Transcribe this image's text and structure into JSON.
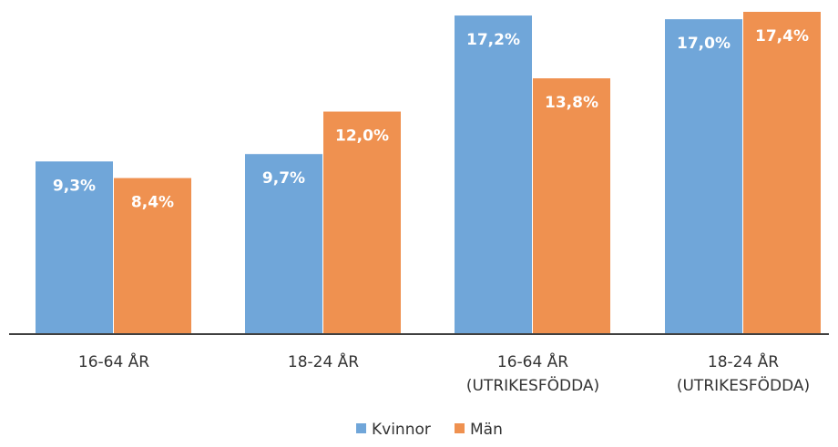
{
  "chart_data": {
    "type": "bar",
    "categories": [
      [
        "16-64 ÅR"
      ],
      [
        "18-24 ÅR"
      ],
      [
        "16-64 ÅR",
        "(UTRIKESFÖDDA)"
      ],
      [
        "18-24 ÅR",
        "(UTRIKESFÖDDA)"
      ]
    ],
    "series": [
      {
        "name": "Kvinnor",
        "color": "#70a6d9",
        "values": [
          9.3,
          9.7,
          17.2,
          17.0
        ],
        "labels": [
          "9,3%",
          "9,7%",
          "17,2%",
          "17,0%"
        ]
      },
      {
        "name": "Män",
        "color": "#ef9150",
        "values": [
          8.4,
          12.0,
          13.8,
          17.4
        ],
        "labels": [
          "8,4%",
          "12,0%",
          "13,8%",
          "17,4%"
        ]
      }
    ],
    "title": "",
    "xlabel": "",
    "ylabel": "",
    "ylim": [
      0,
      17.4
    ],
    "grid": false,
    "legend": "bottom-center"
  }
}
